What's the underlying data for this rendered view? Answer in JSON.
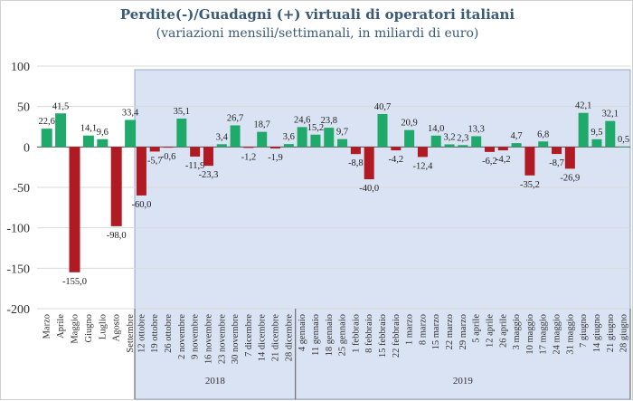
{
  "chart_data": {
    "type": "bar",
    "title": "Perdite(-)/Guadagni (+) virtuali di operatori italiani",
    "subtitle": "(variazioni mensili/settimanali, in miliardi di euro)",
    "ylim": [
      -200,
      100
    ],
    "yticks": [
      100,
      50,
      0,
      -50,
      -100,
      -150,
      -200
    ],
    "grid": true,
    "categories": [
      "Marzo",
      "Aprile",
      "Maggio",
      "Giugno",
      "Luglio",
      "Agosto",
      "Settembre",
      "12 ottobre",
      "19 ottobre",
      "26 ottobre",
      "2 novembre",
      "9 novembre",
      "16 novembre",
      "23 novembre",
      "30 novembre",
      "7 dicembre",
      "14 dicembre",
      "21 dicembre",
      "28 dicembre",
      "4 gennaio",
      "11 gennaio",
      "18 gennaio",
      "25 gennaio",
      "1 febbraio",
      "8 febbraio",
      "15 febbraio",
      "22 febbraio",
      "1 marzo",
      "8 marzo",
      "15 marzo",
      "22 marzo",
      "29 marzo",
      "5 aprile",
      "12 aprile",
      "26 aprile",
      "3 maggio",
      "10 maggio",
      "17 maggio",
      "24 maggio",
      "31 maggio",
      "7 giugno",
      "14 giugno",
      "21 giugno",
      "28 giugno"
    ],
    "values": [
      22.6,
      41.5,
      -155.0,
      14.1,
      9.6,
      -98.0,
      33.4,
      -60.0,
      -5.7,
      -0.6,
      35.1,
      -11.9,
      -23.3,
      3.4,
      26.7,
      -1.2,
      18.7,
      -1.9,
      3.6,
      24.6,
      15.2,
      23.8,
      9.7,
      -8.8,
      -40.0,
      40.7,
      -4.2,
      20.9,
      -12.4,
      14.0,
      3.2,
      2.3,
      13.3,
      -6.2,
      -4.2,
      4.7,
      -35.2,
      6.8,
      -8.7,
      -26.9,
      42.1,
      9.5,
      32.1,
      0.5
    ],
    "labels": [
      "22,6",
      "41,5",
      "-155,0",
      "14,1",
      "9,6",
      "-98,0",
      "33,4",
      "-60,0",
      "-5,7",
      "-0,6",
      "35,1",
      "-11,9",
      "-23,3",
      "3,4",
      "26,7",
      "-1,2",
      "18,7",
      "-1,9",
      "3,6",
      "24,6",
      "15,2",
      "23,8",
      "9,7",
      "-8,8",
      "-40,0",
      "40,7",
      "-4,2",
      "20,9",
      "-12,4",
      "14,0",
      "3,2",
      "2,3",
      "13,3",
      "-6,2",
      "-4,2",
      "4,7",
      "-35,2",
      "6,8",
      "-8,7",
      "-26,9",
      "42,1",
      "9,5",
      "32,1",
      "0,5"
    ],
    "year_groups": [
      {
        "label": "2018",
        "from": 7,
        "to": 18
      },
      {
        "label": "2019",
        "from": 19,
        "to": 43
      }
    ],
    "shaded_from_index": 7,
    "colors": {
      "positive": "#1faa6b",
      "negative": "#b01a22",
      "shade": "#dae3f3",
      "title": "#3a5a7a",
      "axis": "#555555"
    }
  }
}
